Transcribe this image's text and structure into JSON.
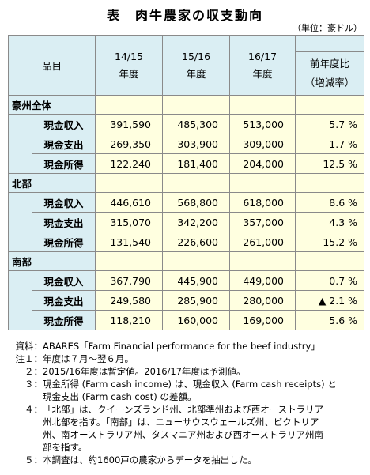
{
  "title": "表　肉牛農家の収支動向",
  "unit": "（単位：豪ドル）",
  "colors": {
    "header_bg": "#DAEEF3",
    "cell_bg": "#FFFFE0"
  },
  "table": {
    "headers": {
      "item": "品目",
      "years": [
        {
          "line1": "14/15",
          "line2": "年度"
        },
        {
          "line1": "15/16",
          "line2": "年度"
        },
        {
          "line1": "16/17",
          "line2": "年度"
        }
      ],
      "change": {
        "line1": "前年度比",
        "line2": "（増減率）"
      }
    },
    "groups": [
      {
        "name": "豪州全体",
        "rows": [
          {
            "label": "現金収入",
            "values": [
              "391,590",
              "485,300",
              "513,000"
            ],
            "change": "5.7 %"
          },
          {
            "label": "現金支出",
            "values": [
              "269,350",
              "303,900",
              "309,000"
            ],
            "change": "1.7 %"
          },
          {
            "label": "現金所得",
            "values": [
              "122,240",
              "181,400",
              "204,000"
            ],
            "change": "12.5 %"
          }
        ]
      },
      {
        "name": "北部",
        "rows": [
          {
            "label": "現金収入",
            "values": [
              "446,610",
              "568,800",
              "618,000"
            ],
            "change": "8.6 %"
          },
          {
            "label": "現金支出",
            "values": [
              "315,070",
              "342,200",
              "357,000"
            ],
            "change": "4.3 %"
          },
          {
            "label": "現金所得",
            "values": [
              "131,540",
              "226,600",
              "261,000"
            ],
            "change": "15.2 %"
          }
        ]
      },
      {
        "name": "南部",
        "rows": [
          {
            "label": "現金収入",
            "values": [
              "367,790",
              "445,900",
              "449,000"
            ],
            "change": "0.7 %"
          },
          {
            "label": "現金支出",
            "values": [
              "249,580",
              "285,900",
              "280,000"
            ],
            "change": "▲ 2.1 %"
          },
          {
            "label": "現金所得",
            "values": [
              "118,210",
              "160,000",
              "169,000"
            ],
            "change": "5.6 %"
          }
        ]
      }
    ]
  },
  "notes": [
    {
      "prefix": "資料：",
      "lines": [
        "ABARES「Farm Financial performance for the beef industry」"
      ]
    },
    {
      "prefix": "注１：",
      "lines": [
        "年度は７月～翌６月。"
      ]
    },
    {
      "prefix": "２：",
      "lines": [
        "2015/16年度は暫定値。2016/17年度は予測値。"
      ]
    },
    {
      "prefix": "３：",
      "lines": [
        "現金所得 (Farm cash income) は、現金収入 (Farm cash receipts) と",
        "現金支出 (Farm cash cost) の差額。"
      ]
    },
    {
      "prefix": "４：",
      "lines": [
        "「北部」は、クイーンズランド州、北部準州および西オーストラリア",
        "州北部を指す。「南部」は、ニューサウスウェールズ州、ビクトリア",
        "州、南オーストラリア州、タスマニア州および西オーストラリア州南",
        "部を指す。"
      ]
    },
    {
      "prefix": "５：",
      "lines": [
        "本調査は、約1600戸の農家からデータを抽出した。"
      ]
    }
  ]
}
